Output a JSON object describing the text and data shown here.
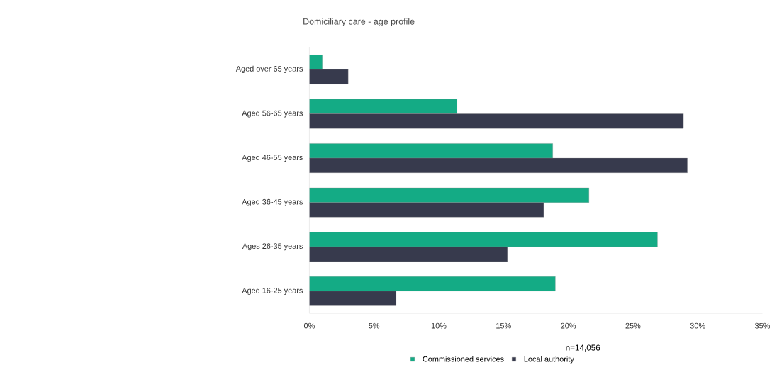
{
  "chart_data": {
    "type": "bar",
    "orientation": "horizontal",
    "title": "Domiciliary care - age profile",
    "categories": [
      "Aged over 65 years",
      "Aged 56-65 years",
      "Aged 46-55 years",
      "Aged 36-45 years",
      "Ages 26-35 years",
      "Aged 16-25 years"
    ],
    "series": [
      {
        "name": "Commissioned services",
        "color": "#14ab85",
        "values": [
          1.0,
          11.4,
          18.8,
          21.6,
          26.9,
          19.0
        ]
      },
      {
        "name": "Local authority",
        "color": "#373a4d",
        "values": [
          3.0,
          28.9,
          29.2,
          18.1,
          15.3,
          6.7
        ]
      }
    ],
    "xlim": [
      0,
      35
    ],
    "xticks": [
      {
        "value": 0,
        "label": "0%"
      },
      {
        "value": 5,
        "label": "5%"
      },
      {
        "value": 10,
        "label": "10%"
      },
      {
        "value": 15,
        "label": "15%"
      },
      {
        "value": 20,
        "label": "20%"
      },
      {
        "value": 25,
        "label": "25%"
      },
      {
        "value": 30,
        "label": "30%"
      },
      {
        "value": 35,
        "label": "35%"
      }
    ],
    "legend": "bottom",
    "annotations": [
      "n=14,056"
    ]
  }
}
